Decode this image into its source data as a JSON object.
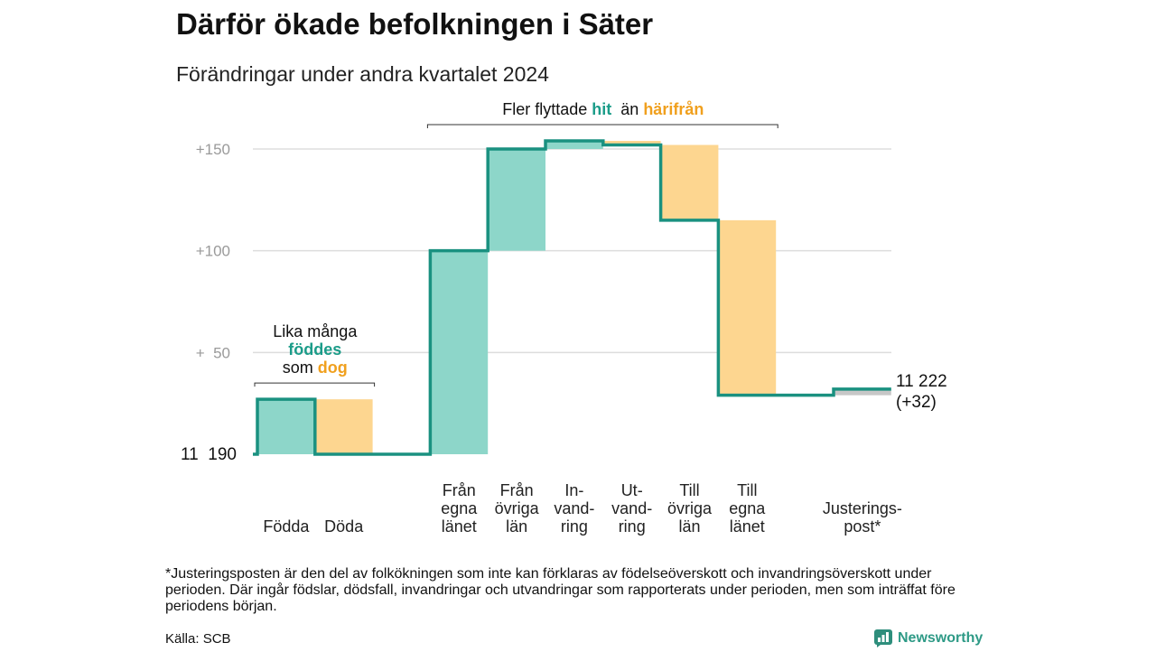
{
  "title": "Därför ökade befolkningen i Säter",
  "subtitle": "Förändringar under andra kvartalet 2024",
  "footnote": "*Justeringsposten är den del av folkökningen som inte kan förklaras av födelseöverskott och invandringsöverskott under perioden. Där ingår födslar, dödsfall, invandringar och utvandringar som rapporterats under perioden, men som inträffat före periodens början.",
  "source": "Källa: SCB",
  "brand": {
    "name": "Newsworthy",
    "icon": "newsworthy-logo-icon",
    "color": "#2e9a86"
  },
  "chart_data": {
    "type": "bar",
    "style": "waterfall",
    "start_label": "11  190",
    "end_label": "11 222",
    "end_change_label": "(+32)",
    "ylim": [
      0,
      160
    ],
    "grid": true,
    "y_ticks": [
      {
        "value": 150,
        "label": "+150"
      },
      {
        "value": 100,
        "label": "+100"
      },
      {
        "value": 50,
        "label": "+  50"
      }
    ],
    "colors": {
      "in": "#8dd6c9",
      "out": "#fdd690",
      "adjustment": "#c7c7c7",
      "line": "#1a9180",
      "grid": "#dddddd",
      "highlight_in": "#1b9c89",
      "highlight_out": "#f0a01e"
    },
    "groups": [
      {
        "categories": [
          {
            "label": [
              "Födda"
            ],
            "value": 27,
            "tone": "in"
          },
          {
            "label": [
              "Döda"
            ],
            "value": -27,
            "tone": "out"
          }
        ],
        "annotation": {
          "lines": [
            [
              {
                "text": "Lika många"
              }
            ],
            [
              {
                "text": "föddes",
                "tone": "in"
              }
            ],
            [
              {
                "text": "som "
              },
              {
                "text": "dog",
                "tone": "out"
              }
            ]
          ]
        }
      },
      {
        "categories": [
          {
            "label": [
              "Från",
              "egna",
              "länet"
            ],
            "value": 100,
            "tone": "in"
          },
          {
            "label": [
              "Från",
              "övriga",
              "län"
            ],
            "value": 50,
            "tone": "in"
          },
          {
            "label": [
              "In-",
              "vand-",
              "ring"
            ],
            "value": 4,
            "tone": "in"
          },
          {
            "label": [
              "Ut-",
              "vand-",
              "ring"
            ],
            "value": -2,
            "tone": "out"
          },
          {
            "label": [
              "Till",
              "övriga",
              "län"
            ],
            "value": -37,
            "tone": "out"
          },
          {
            "label": [
              "Till",
              "egna",
              "länet"
            ],
            "value": -86,
            "tone": "out"
          }
        ],
        "annotation": {
          "lines": [
            [
              {
                "text": "Fler flyttade "
              },
              {
                "text": "hit",
                "tone": "in"
              },
              {
                "text": "  än "
              },
              {
                "text": "härifrån",
                "tone": "out"
              }
            ]
          ]
        }
      },
      {
        "categories": [
          {
            "label": [
              "Justerings-",
              "post*"
            ],
            "value": 3,
            "tone": "adjustment"
          }
        ]
      }
    ]
  }
}
